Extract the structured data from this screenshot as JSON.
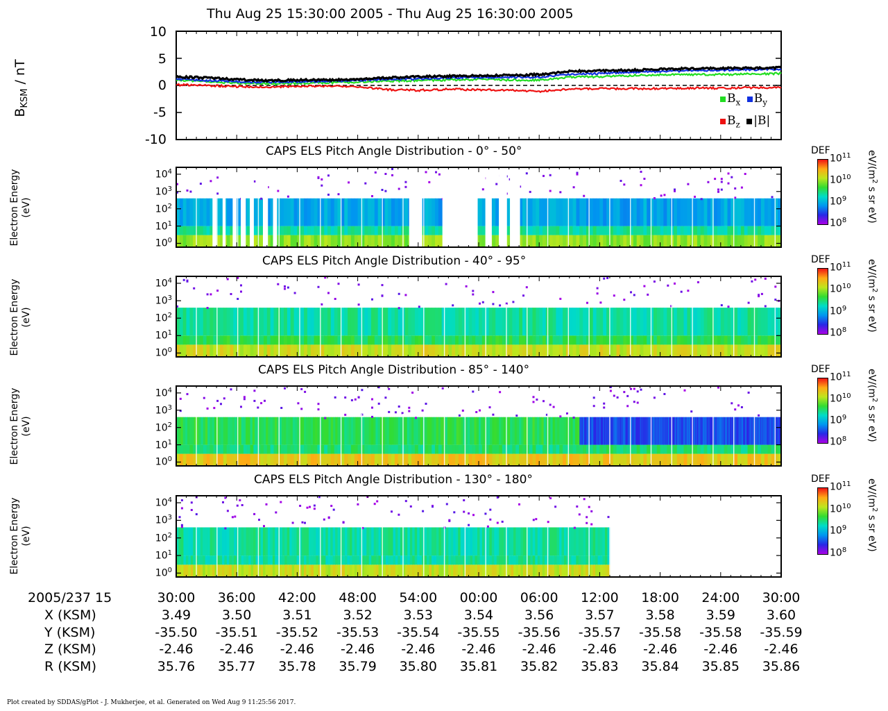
{
  "header": {
    "title": "Thu Aug 25 15:30:00 2005 - Thu Aug 25 16:30:00 2005"
  },
  "mag_panel": {
    "ylabel_main": "B",
    "ylabel_sub": "KSM",
    "ylabel_unit": " / nT",
    "yticks": [
      "10",
      "5",
      "0",
      "-5",
      "-10"
    ],
    "legend": [
      {
        "base": "B",
        "sub": "x",
        "color": "#22dd22"
      },
      {
        "base": "B",
        "sub": "y",
        "color": "#1030e0"
      },
      {
        "base": "B",
        "sub": "z",
        "color": "#ee1111"
      },
      {
        "base": "|B|",
        "sub": "",
        "color": "#000000"
      }
    ]
  },
  "spec_panels": [
    {
      "title": "CAPS ELS Pitch Angle Distribution - 0° - 50°"
    },
    {
      "title": "CAPS ELS Pitch Angle Distribution - 40° - 95°"
    },
    {
      "title": "CAPS ELS Pitch Angle Distribution - 85° - 140°"
    },
    {
      "title": "CAPS ELS Pitch Angle Distribution - 130° - 180°"
    }
  ],
  "spec_ylabel": {
    "line1": "Electron Energy",
    "line2": "(eV)"
  },
  "energy_ticks": [
    {
      "base": "10",
      "exp": "4"
    },
    {
      "base": "10",
      "exp": "3"
    },
    {
      "base": "10",
      "exp": "2"
    },
    {
      "base": "10",
      "exp": "1"
    },
    {
      "base": "10",
      "exp": "0"
    }
  ],
  "colorbar": {
    "label": "DEF",
    "ticks": [
      {
        "base": "10",
        "exp": "11"
      },
      {
        "base": "10",
        "exp": "10"
      },
      {
        "base": "10",
        "exp": "9"
      },
      {
        "base": "10",
        "exp": "8"
      }
    ],
    "unit_pre": "eV/(m",
    "unit_sup": "2",
    "unit_post": " s sr eV)"
  },
  "ephemeris": {
    "rows": [
      {
        "label": "2005/237 15",
        "values": [
          "30:00",
          "36:00",
          "42:00",
          "48:00",
          "54:00",
          "00:00",
          "06:00",
          "12:00",
          "18:00",
          "24:00",
          "30:00"
        ]
      },
      {
        "label": "X (KSM)",
        "values": [
          "3.49",
          "3.50",
          "3.51",
          "3.52",
          "3.53",
          "3.54",
          "3.56",
          "3.57",
          "3.58",
          "3.59",
          "3.60"
        ]
      },
      {
        "label": "Y (KSM)",
        "values": [
          "-35.50",
          "-35.51",
          "-35.52",
          "-35.53",
          "-35.54",
          "-35.55",
          "-35.56",
          "-35.57",
          "-35.58",
          "-35.58",
          "-35.59"
        ]
      },
      {
        "label": "Z (KSM)",
        "values": [
          "-2.46",
          "-2.46",
          "-2.46",
          "-2.46",
          "-2.46",
          "-2.46",
          "-2.46",
          "-2.46",
          "-2.46",
          "-2.46",
          "-2.46"
        ]
      },
      {
        "label": "R (KSM)",
        "values": [
          "35.76",
          "35.77",
          "35.78",
          "35.79",
          "35.80",
          "35.81",
          "35.82",
          "35.83",
          "35.84",
          "35.85",
          "35.86"
        ]
      }
    ]
  },
  "footer": {
    "text": "Plot created by SDDAS/gPlot - J. Mukherjee, et al.  Generated on Wed Aug 9 11:25:56 2017."
  },
  "chart_data": [
    {
      "type": "line",
      "title": "Thu Aug 25 15:30:00 2005 - Thu Aug 25 16:30:00 2005",
      "xlabel": "",
      "ylabel": "BKSM / nT",
      "xlim_min": [
        0,
        60
      ],
      "ylim": [
        -10,
        10
      ],
      "x": [
        0,
        3,
        6,
        9,
        12,
        15,
        18,
        21,
        24,
        27,
        30,
        33,
        36,
        39,
        42,
        45,
        48,
        51,
        54,
        57,
        60
      ],
      "series": [
        {
          "name": "Bx",
          "color": "#22dd22",
          "values": [
            1.0,
            0.7,
            0.4,
            0.3,
            0.4,
            0.5,
            0.6,
            0.8,
            0.9,
            1.0,
            1.1,
            1.0,
            1.0,
            1.5,
            1.6,
            1.8,
            2.0,
            2.0,
            2.0,
            2.1,
            2.2
          ]
        },
        {
          "name": "By",
          "color": "#1030e0",
          "values": [
            1.2,
            0.9,
            0.7,
            0.6,
            0.7,
            0.8,
            0.9,
            1.1,
            1.2,
            1.4,
            1.5,
            1.5,
            1.5,
            2.1,
            2.2,
            2.4,
            2.6,
            2.7,
            2.8,
            2.9,
            3.0
          ]
        },
        {
          "name": "Bz",
          "color": "#ee1111",
          "values": [
            0.1,
            0.0,
            -0.2,
            -0.3,
            -0.2,
            -0.1,
            -0.2,
            -0.8,
            -0.9,
            -0.7,
            -0.8,
            -0.9,
            -1.1,
            -0.7,
            -0.6,
            -0.6,
            -0.6,
            -0.5,
            -0.5,
            -0.4,
            -0.4
          ]
        },
        {
          "name": "|B|",
          "color": "#000000",
          "values": [
            1.6,
            1.4,
            1.1,
            0.9,
            1.0,
            1.0,
            1.1,
            1.4,
            1.6,
            1.7,
            1.8,
            1.9,
            2.0,
            2.6,
            2.7,
            2.8,
            3.0,
            3.1,
            3.2,
            3.2,
            3.3
          ]
        }
      ],
      "reference_line": 0,
      "legend_position": "bottom-right"
    },
    {
      "type": "heatmap",
      "title": "CAPS ELS Pitch Angle Distribution - 0° - 50°",
      "ylabel": "Electron Energy (eV)",
      "y_scale": "log",
      "ylim": [
        0.6,
        25000
      ],
      "colorbar": {
        "label": "DEF",
        "range": [
          100000000.0,
          100000000000.0
        ],
        "scale": "log",
        "unit": "eV/(m2 s sr eV)"
      },
      "time_range_min": [
        0,
        60
      ],
      "description_bands": [
        {
          "energy": [
            0.6,
            3
          ],
          "level": 12000000000.0,
          "t": [
            0,
            60
          ]
        },
        {
          "energy": [
            3,
            10
          ],
          "level": 3000000000.0,
          "t": [
            0,
            60
          ]
        },
        {
          "energy": [
            10,
            400
          ],
          "level": 1000000000.0,
          "t": [
            0,
            60
          ]
        },
        {
          "energy": [
            400,
            25000
          ],
          "level": 200000000.0,
          "t": [
            0,
            60
          ],
          "sparse": true
        }
      ],
      "gaps_min": [
        [
          3.6,
          4.0
        ],
        [
          4.6,
          4.9
        ],
        [
          5.6,
          6.0
        ],
        [
          6.4,
          6.9
        ],
        [
          7.3,
          7.7
        ],
        [
          8.6,
          9.1
        ],
        [
          9.6,
          10.0
        ],
        [
          23.1,
          24.4
        ],
        [
          26.4,
          29.9
        ],
        [
          30.7,
          31.3
        ],
        [
          32.0,
          32.8
        ],
        [
          33.1,
          34.1
        ]
      ]
    },
    {
      "type": "heatmap",
      "title": "CAPS ELS Pitch Angle Distribution - 40° - 95°",
      "ylabel": "Electron Energy (eV)",
      "y_scale": "log",
      "ylim": [
        0.6,
        25000
      ],
      "colorbar": {
        "label": "DEF",
        "range": [
          100000000.0,
          100000000000.0
        ],
        "scale": "log",
        "unit": "eV/(m2 s sr eV)"
      },
      "time_range_min": [
        0,
        60
      ],
      "description_bands": [
        {
          "energy": [
            0.6,
            3
          ],
          "level": 20000000000.0,
          "t": [
            0,
            60
          ]
        },
        {
          "energy": [
            3,
            10
          ],
          "level": 5000000000.0,
          "t": [
            0,
            60
          ]
        },
        {
          "energy": [
            10,
            400
          ],
          "level": 3000000000.0,
          "t": [
            0,
            60
          ]
        },
        {
          "energy": [
            400,
            25000
          ],
          "level": 200000000.0,
          "t": [
            0,
            60
          ],
          "sparse": true
        }
      ]
    },
    {
      "type": "heatmap",
      "title": "CAPS ELS Pitch Angle Distribution - 85° - 140°",
      "ylabel": "Electron Energy (eV)",
      "y_scale": "log",
      "ylim": [
        0.6,
        25000
      ],
      "colorbar": {
        "label": "DEF",
        "range": [
          100000000.0,
          100000000000.0
        ],
        "scale": "log",
        "unit": "eV/(m2 s sr eV)"
      },
      "time_range_min": [
        0,
        60
      ],
      "description_bands": [
        {
          "energy": [
            0.6,
            3
          ],
          "level": 30000000000.0,
          "t": [
            0,
            60
          ]
        },
        {
          "energy": [
            3,
            10
          ],
          "level": 4000000000.0,
          "t": [
            0,
            60
          ]
        },
        {
          "energy": [
            10,
            400
          ],
          "level": 5000000000.0,
          "t": [
            0,
            40
          ]
        },
        {
          "energy": [
            10,
            400
          ],
          "level": 400000000.0,
          "t": [
            40,
            60
          ]
        },
        {
          "energy": [
            400,
            25000
          ],
          "level": 200000000.0,
          "t": [
            0,
            60
          ],
          "sparse": true
        }
      ]
    },
    {
      "type": "heatmap",
      "title": "CAPS ELS Pitch Angle Distribution - 130° - 180°",
      "ylabel": "Electron Energy (eV)",
      "y_scale": "log",
      "ylim": [
        0.6,
        25000
      ],
      "colorbar": {
        "label": "DEF",
        "range": [
          100000000.0,
          100000000000.0
        ],
        "scale": "log",
        "unit": "eV/(m2 s sr eV)"
      },
      "time_range_min": [
        0,
        60
      ],
      "description_bands": [
        {
          "energy": [
            0.6,
            3
          ],
          "level": 20000000000.0,
          "t": [
            0,
            43
          ]
        },
        {
          "energy": [
            3,
            10
          ],
          "level": 3000000000.0,
          "t": [
            0,
            43
          ]
        },
        {
          "energy": [
            10,
            400
          ],
          "level": 3000000000.0,
          "t": [
            0,
            43
          ]
        },
        {
          "energy": [
            400,
            25000
          ],
          "level": 200000000.0,
          "t": [
            0,
            43
          ],
          "sparse": true
        }
      ],
      "gap_after_min": 43.2
    }
  ]
}
